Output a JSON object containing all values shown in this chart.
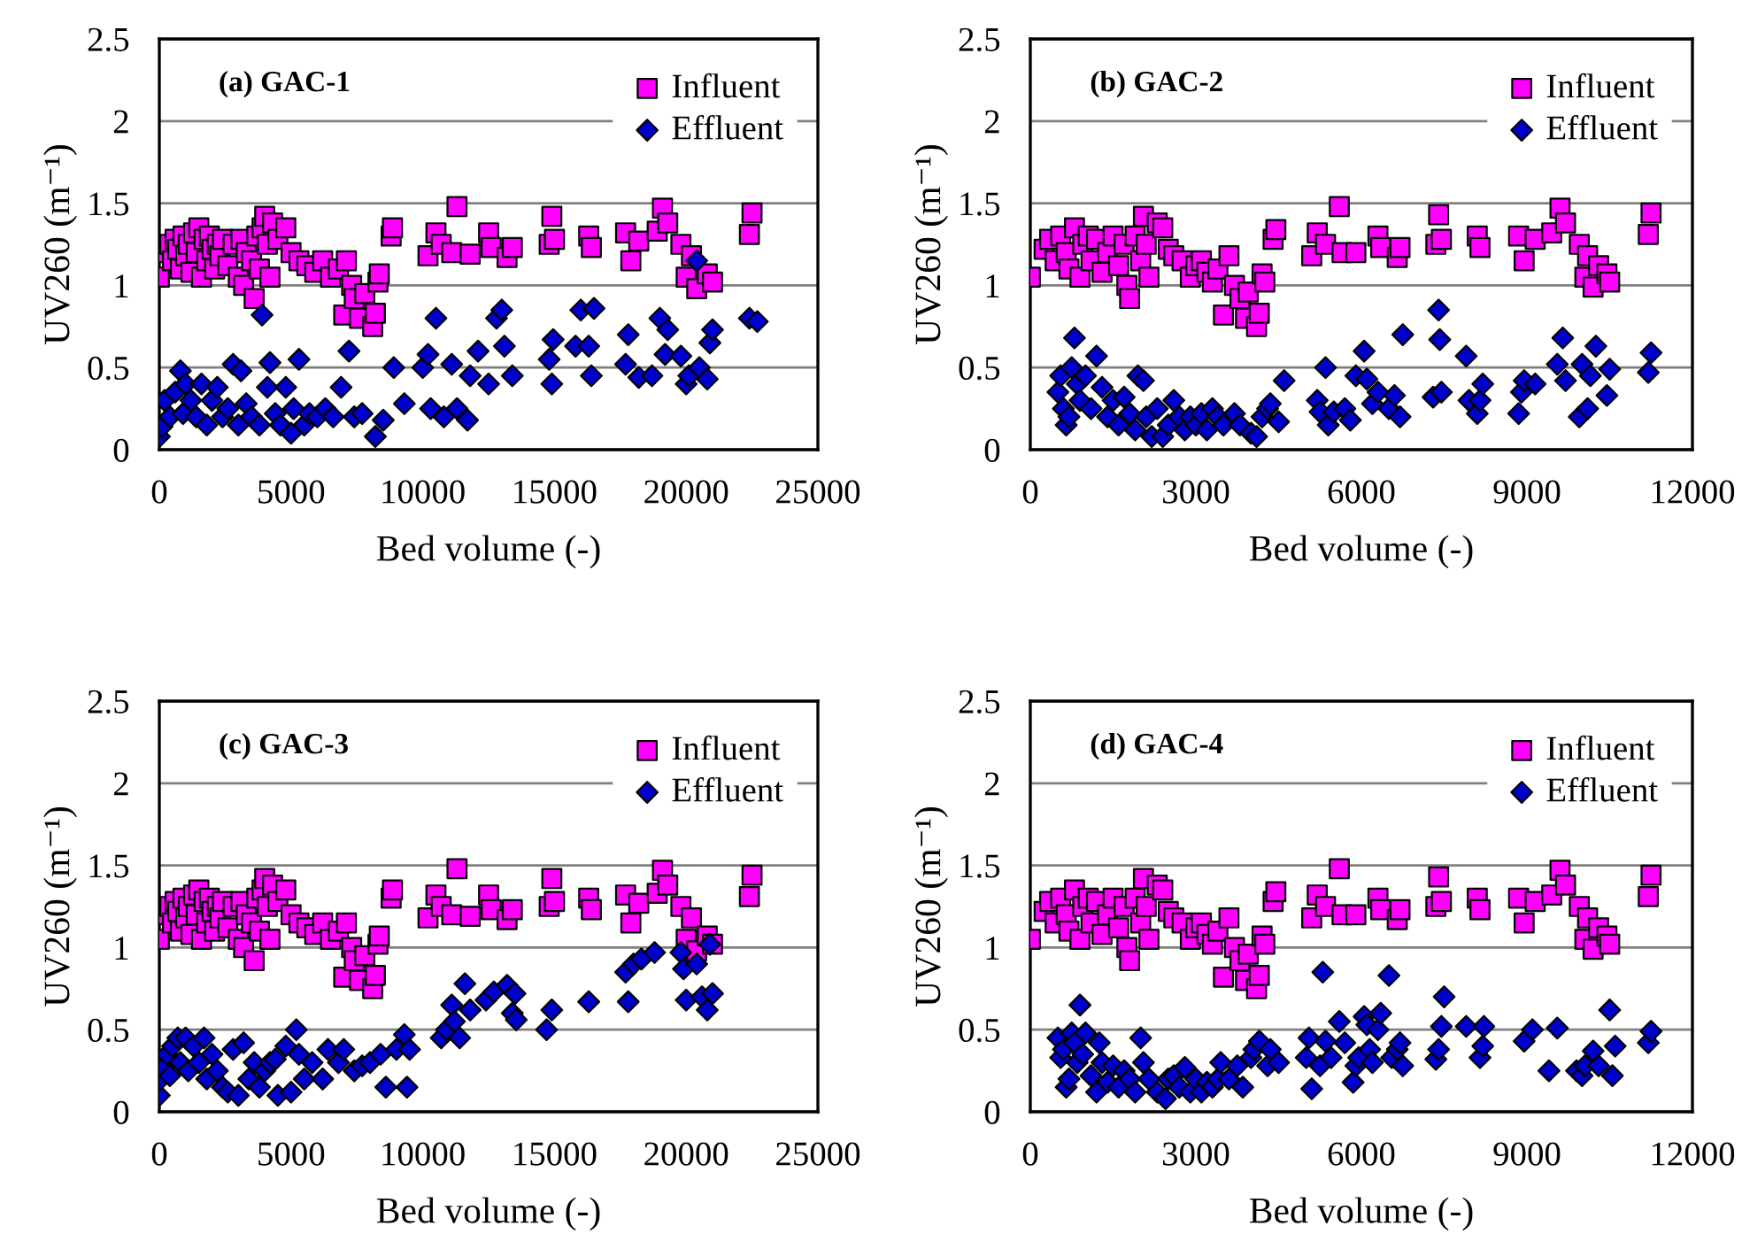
{
  "chart_data": [
    {
      "type": "scatter",
      "title": "(a) GAC-1",
      "xlabel": "Bed volume (-)",
      "ylabel": "UV260 (m⁻¹)",
      "xlim": [
        0,
        25000
      ],
      "xticks": [
        0,
        5000,
        10000,
        15000,
        20000,
        25000
      ],
      "ylim": [
        0,
        2.5
      ],
      "yticks": [
        0,
        0.5,
        1,
        1.5,
        2,
        2.5
      ],
      "grid": "y",
      "legend": "top right",
      "series": [
        {
          "name": "Influent",
          "color": "#ff00ff",
          "marker": "square",
          "x": [
            0,
            300,
            400,
            500,
            600,
            700,
            800,
            900,
            1000,
            1100,
            1200,
            1300,
            1400,
            1500,
            1600,
            1700,
            1800,
            1900,
            2000,
            2100,
            2200,
            2300,
            2400,
            2600,
            2800,
            3000,
            3100,
            3200,
            3300,
            3500,
            3600,
            3700,
            3800,
            3900,
            4000,
            4100,
            4200,
            4300,
            4500,
            4800,
            5000,
            5300,
            5600,
            5900,
            6200,
            6500,
            6800,
            7000,
            7100,
            7300,
            7400,
            7600,
            7800,
            8100,
            8200,
            8300,
            8350,
            8800,
            8850,
            10200,
            10500,
            10700,
            11100,
            11300,
            11800,
            12500,
            12600,
            13200,
            13400,
            14800,
            14900,
            15000,
            16300,
            16400,
            17700,
            17900,
            18200,
            18900,
            19100,
            19300,
            19800,
            20000,
            20200,
            20400,
            20800,
            21000,
            22400,
            22500
          ],
          "values": [
            1.05,
            1.2,
            1.25,
            1.15,
            1.28,
            1.22,
            1.1,
            1.3,
            1.18,
            1.25,
            1.08,
            1.32,
            1.2,
            1.35,
            1.05,
            1.28,
            1.15,
            1.3,
            1.22,
            1.1,
            1.25,
            1.18,
            1.28,
            1.12,
            1.25,
            1.05,
            1.28,
            1.0,
            1.2,
            1.15,
            0.92,
            1.3,
            1.1,
            1.35,
            1.42,
            1.25,
            1.05,
            1.38,
            1.28,
            1.35,
            1.2,
            1.15,
            1.12,
            1.08,
            1.15,
            1.05,
            1.1,
            0.82,
            1.15,
            1.0,
            0.92,
            0.8,
            0.95,
            0.75,
            0.83,
            1.02,
            1.07,
            1.3,
            1.35,
            1.18,
            1.32,
            1.25,
            1.2,
            1.48,
            1.19,
            1.32,
            1.23,
            1.17,
            1.23,
            1.25,
            1.42,
            1.28,
            1.3,
            1.23,
            1.32,
            1.15,
            1.27,
            1.33,
            1.47,
            1.38,
            1.25,
            1.05,
            1.18,
            0.98,
            1.07,
            1.02,
            1.31,
            1.44
          ]
        },
        {
          "name": "Effluent",
          "color": "#0000cc",
          "marker": "diamond",
          "x": [
            0,
            100,
            200,
            400,
            600,
            800,
            900,
            1000,
            1200,
            1400,
            1600,
            1800,
            2000,
            2200,
            2400,
            2600,
            2800,
            3000,
            3100,
            3300,
            3500,
            3800,
            3900,
            4100,
            4200,
            4400,
            4600,
            4800,
            5000,
            5100,
            5300,
            5500,
            5700,
            6000,
            6300,
            6600,
            6900,
            7200,
            7400,
            7700,
            8200,
            8500,
            8900,
            9300,
            10000,
            10200,
            10300,
            10500,
            10800,
            11100,
            11300,
            11700,
            11800,
            12100,
            12500,
            12800,
            13000,
            13100,
            13400,
            14800,
            14900,
            14950,
            15800,
            16000,
            16300,
            16400,
            16500,
            17700,
            17800,
            18200,
            18700,
            19000,
            19200,
            19300,
            19800,
            20000,
            20100,
            20400,
            20500,
            20800,
            20900,
            21000,
            22400,
            22700
          ],
          "values": [
            0.08,
            0.14,
            0.3,
            0.2,
            0.35,
            0.48,
            0.22,
            0.4,
            0.3,
            0.2,
            0.4,
            0.15,
            0.3,
            0.38,
            0.2,
            0.25,
            0.52,
            0.15,
            0.48,
            0.28,
            0.2,
            0.15,
            0.82,
            0.38,
            0.53,
            0.22,
            0.15,
            0.38,
            0.1,
            0.25,
            0.55,
            0.15,
            0.22,
            0.2,
            0.25,
            0.2,
            0.38,
            0.6,
            0.2,
            0.22,
            0.08,
            0.18,
            0.5,
            0.28,
            0.5,
            0.58,
            0.25,
            0.8,
            0.2,
            0.52,
            0.25,
            0.18,
            0.45,
            0.6,
            0.4,
            0.8,
            0.85,
            0.63,
            0.45,
            0.55,
            0.4,
            0.67,
            0.63,
            0.85,
            0.63,
            0.45,
            0.86,
            0.52,
            0.7,
            0.44,
            0.45,
            0.8,
            0.58,
            0.73,
            0.57,
            0.4,
            0.45,
            1.15,
            0.5,
            0.43,
            0.65,
            0.73,
            0.8,
            0.78
          ]
        }
      ]
    },
    {
      "type": "scatter",
      "title": "(b) GAC-2",
      "xlabel": "Bed volume (-)",
      "ylabel": "UV260 (m⁻¹)",
      "xlim": [
        0,
        12000
      ],
      "xticks": [
        0,
        3000,
        6000,
        9000,
        12000
      ],
      "ylim": [
        0,
        2.5
      ],
      "yticks": [
        0,
        0.5,
        1,
        1.5,
        2,
        2.5
      ],
      "grid": "y",
      "legend": "top right",
      "series": [
        {
          "name": "Influent",
          "color": "#ff00ff",
          "marker": "square",
          "x": [
            0,
            250,
            350,
            450,
            550,
            650,
            700,
            800,
            900,
            950,
            1050,
            1100,
            1200,
            1300,
            1400,
            1500,
            1600,
            1700,
            1750,
            1800,
            1900,
            2000,
            2050,
            2100,
            2150,
            2300,
            2400,
            2500,
            2600,
            2750,
            2900,
            3000,
            3100,
            3200,
            3300,
            3400,
            3500,
            3600,
            3700,
            3800,
            3900,
            3950,
            4100,
            4150,
            4200,
            4250,
            4400,
            4450,
            5100,
            5200,
            5350,
            5600,
            5650,
            5900,
            6300,
            6350,
            6650,
            6700,
            7350,
            7400,
            7450,
            8100,
            8150,
            8850,
            8950,
            9150,
            9450,
            9600,
            9700,
            9950,
            10050,
            10100,
            10200,
            10300,
            10450,
            10500,
            11200,
            11250
          ],
          "values": [
            1.05,
            1.22,
            1.28,
            1.15,
            1.3,
            1.2,
            1.1,
            1.35,
            1.05,
            1.25,
            1.3,
            1.15,
            1.28,
            1.08,
            1.2,
            1.3,
            1.12,
            1.25,
            1.0,
            0.92,
            1.3,
            1.15,
            1.42,
            1.25,
            1.05,
            1.38,
            1.35,
            1.22,
            1.18,
            1.15,
            1.05,
            1.12,
            1.15,
            1.08,
            1.02,
            1.1,
            0.82,
            1.18,
            1.0,
            0.92,
            0.8,
            0.96,
            0.75,
            0.83,
            1.07,
            1.02,
            1.28,
            1.34,
            1.18,
            1.32,
            1.25,
            1.48,
            1.2,
            1.2,
            1.3,
            1.23,
            1.17,
            1.23,
            1.25,
            1.43,
            1.28,
            1.3,
            1.23,
            1.3,
            1.15,
            1.28,
            1.32,
            1.47,
            1.38,
            1.25,
            1.05,
            1.18,
            0.99,
            1.12,
            1.07,
            1.02,
            1.31,
            1.44
          ]
        },
        {
          "name": "Effluent",
          "color": "#0000cc",
          "marker": "diamond",
          "x": [
            500,
            550,
            600,
            650,
            700,
            750,
            800,
            850,
            900,
            1000,
            1100,
            1200,
            1300,
            1400,
            1500,
            1600,
            1700,
            1800,
            1900,
            1950,
            2050,
            2100,
            2200,
            2300,
            2400,
            2500,
            2600,
            2700,
            2800,
            2900,
            3000,
            3100,
            3200,
            3300,
            3400,
            3500,
            3700,
            3800,
            4000,
            4100,
            4200,
            4300,
            4350,
            4500,
            4600,
            5200,
            5250,
            5350,
            5400,
            5500,
            5700,
            5800,
            5900,
            6050,
            6100,
            6200,
            6300,
            6500,
            6600,
            6700,
            6750,
            7300,
            7400,
            7420,
            7450,
            7900,
            7950,
            8100,
            8150,
            8200,
            8850,
            8900,
            8950,
            9150,
            9550,
            9650,
            9700,
            9950,
            10000,
            10100,
            10150,
            10250,
            10450,
            10500,
            11200,
            11250
          ],
          "values": [
            0.35,
            0.45,
            0.25,
            0.15,
            0.2,
            0.5,
            0.68,
            0.4,
            0.3,
            0.45,
            0.25,
            0.57,
            0.38,
            0.2,
            0.3,
            0.15,
            0.32,
            0.22,
            0.12,
            0.45,
            0.42,
            0.2,
            0.08,
            0.25,
            0.08,
            0.15,
            0.3,
            0.2,
            0.12,
            0.2,
            0.15,
            0.22,
            0.12,
            0.25,
            0.2,
            0.15,
            0.22,
            0.15,
            0.1,
            0.08,
            0.2,
            0.25,
            0.28,
            0.17,
            0.42,
            0.3,
            0.23,
            0.5,
            0.15,
            0.23,
            0.25,
            0.18,
            0.45,
            0.6,
            0.43,
            0.28,
            0.35,
            0.25,
            0.33,
            0.2,
            0.7,
            0.32,
            0.85,
            0.67,
            0.35,
            0.57,
            0.3,
            0.22,
            0.3,
            0.4,
            0.22,
            0.35,
            0.42,
            0.4,
            0.52,
            0.68,
            0.42,
            0.2,
            0.52,
            0.25,
            0.45,
            0.63,
            0.33,
            0.49,
            0.47,
            0.59
          ]
        }
      ]
    },
    {
      "type": "scatter",
      "title": "(c) GAC-3",
      "xlabel": "Bed volume (-)",
      "ylabel": "UV260 (m⁻¹)",
      "xlim": [
        0,
        25000
      ],
      "xticks": [
        0,
        5000,
        10000,
        15000,
        20000,
        25000
      ],
      "ylim": [
        0,
        2.5
      ],
      "yticks": [
        0,
        0.5,
        1,
        1.5,
        2,
        2.5
      ],
      "grid": "y",
      "legend": "top right",
      "series": [
        {
          "name": "Influent",
          "color": "#ff00ff",
          "marker": "square",
          "x": [
            0,
            300,
            400,
            500,
            600,
            700,
            800,
            900,
            1000,
            1100,
            1200,
            1300,
            1400,
            1500,
            1600,
            1700,
            1800,
            1900,
            2000,
            2100,
            2200,
            2300,
            2400,
            2600,
            2800,
            3000,
            3100,
            3200,
            3300,
            3500,
            3600,
            3700,
            3800,
            3900,
            4000,
            4100,
            4200,
            4300,
            4500,
            4800,
            5000,
            5300,
            5600,
            5900,
            6200,
            6500,
            6800,
            7000,
            7100,
            7300,
            7400,
            7600,
            7800,
            8100,
            8200,
            8300,
            8350,
            8800,
            8850,
            10200,
            10500,
            10700,
            11100,
            11300,
            11800,
            12500,
            12600,
            13200,
            13400,
            14800,
            14900,
            15000,
            16300,
            16400,
            17700,
            17900,
            18200,
            18900,
            19100,
            19300,
            19800,
            20000,
            20200,
            20400,
            20800,
            21000,
            22400,
            22500
          ],
          "values": [
            1.05,
            1.2,
            1.25,
            1.15,
            1.28,
            1.22,
            1.1,
            1.3,
            1.18,
            1.25,
            1.08,
            1.32,
            1.2,
            1.35,
            1.05,
            1.28,
            1.15,
            1.3,
            1.22,
            1.1,
            1.25,
            1.18,
            1.28,
            1.12,
            1.25,
            1.05,
            1.28,
            1.0,
            1.2,
            1.15,
            0.92,
            1.3,
            1.1,
            1.35,
            1.42,
            1.25,
            1.05,
            1.38,
            1.28,
            1.35,
            1.2,
            1.15,
            1.12,
            1.08,
            1.15,
            1.05,
            1.1,
            0.82,
            1.15,
            1.0,
            0.92,
            0.8,
            0.95,
            0.75,
            0.83,
            1.02,
            1.07,
            1.3,
            1.35,
            1.18,
            1.32,
            1.25,
            1.2,
            1.48,
            1.19,
            1.32,
            1.23,
            1.17,
            1.23,
            1.25,
            1.42,
            1.28,
            1.3,
            1.23,
            1.32,
            1.15,
            1.27,
            1.33,
            1.47,
            1.38,
            1.25,
            1.05,
            1.18,
            0.98,
            1.07,
            1.02,
            1.31,
            1.44
          ]
        },
        {
          "name": "Effluent",
          "color": "#0000cc",
          "marker": "diamond",
          "x": [
            0,
            50,
            150,
            300,
            400,
            500,
            700,
            800,
            1000,
            1100,
            1300,
            1500,
            1700,
            1800,
            2000,
            2200,
            2400,
            2600,
            2800,
            3000,
            3200,
            3400,
            3600,
            3800,
            4000,
            4200,
            4400,
            4500,
            4800,
            5000,
            5200,
            5300,
            5500,
            5800,
            6200,
            6400,
            6800,
            7000,
            7400,
            7700,
            8000,
            8400,
            8600,
            9000,
            9300,
            9400,
            9500,
            10700,
            10900,
            11100,
            11200,
            11400,
            11600,
            11800,
            12400,
            12700,
            13200,
            13400,
            13500,
            13550,
            14700,
            14900,
            16300,
            17700,
            17800,
            18000,
            18300,
            18800,
            19800,
            19900,
            20000,
            20400,
            20600,
            20800,
            20900,
            21000
          ],
          "values": [
            0.1,
            0.2,
            0.27,
            0.35,
            0.22,
            0.4,
            0.45,
            0.3,
            0.45,
            0.25,
            0.4,
            0.3,
            0.45,
            0.2,
            0.35,
            0.25,
            0.15,
            0.12,
            0.38,
            0.1,
            0.42,
            0.2,
            0.3,
            0.15,
            0.25,
            0.3,
            0.32,
            0.1,
            0.4,
            0.12,
            0.5,
            0.35,
            0.2,
            0.3,
            0.2,
            0.38,
            0.3,
            0.38,
            0.25,
            0.28,
            0.3,
            0.35,
            0.15,
            0.38,
            0.47,
            0.15,
            0.38,
            0.45,
            0.5,
            0.65,
            0.55,
            0.45,
            0.78,
            0.62,
            0.68,
            0.73,
            0.77,
            0.6,
            0.72,
            0.56,
            0.5,
            0.62,
            0.67,
            0.85,
            0.67,
            0.9,
            0.93,
            0.97,
            0.97,
            0.87,
            0.68,
            0.9,
            0.7,
            0.62,
            1.02,
            0.72
          ]
        }
      ]
    },
    {
      "type": "scatter",
      "title": "(d) GAC-4",
      "xlabel": "Bed volume (-)",
      "ylabel": "UV260 (m⁻¹)",
      "xlim": [
        0,
        12000
      ],
      "xticks": [
        0,
        3000,
        6000,
        9000,
        12000
      ],
      "ylim": [
        0,
        2.5
      ],
      "yticks": [
        0,
        0.5,
        1,
        1.5,
        2,
        2.5
      ],
      "grid": "y",
      "legend": "top right",
      "series": [
        {
          "name": "Influent",
          "color": "#ff00ff",
          "marker": "square",
          "x": [
            0,
            250,
            350,
            450,
            550,
            650,
            700,
            800,
            900,
            950,
            1050,
            1100,
            1200,
            1300,
            1400,
            1500,
            1600,
            1700,
            1750,
            1800,
            1900,
            2000,
            2050,
            2100,
            2150,
            2300,
            2400,
            2500,
            2600,
            2750,
            2900,
            3000,
            3100,
            3200,
            3300,
            3400,
            3500,
            3600,
            3700,
            3800,
            3900,
            3950,
            4100,
            4150,
            4200,
            4250,
            4400,
            4450,
            5100,
            5200,
            5350,
            5600,
            5650,
            5900,
            6300,
            6350,
            6650,
            6700,
            7350,
            7400,
            7450,
            8100,
            8150,
            8850,
            8950,
            9150,
            9450,
            9600,
            9700,
            9950,
            10050,
            10100,
            10200,
            10300,
            10450,
            10500,
            11200,
            11250
          ],
          "values": [
            1.05,
            1.22,
            1.28,
            1.15,
            1.3,
            1.2,
            1.1,
            1.35,
            1.05,
            1.25,
            1.3,
            1.15,
            1.28,
            1.08,
            1.2,
            1.3,
            1.12,
            1.25,
            1.0,
            0.92,
            1.3,
            1.15,
            1.42,
            1.25,
            1.05,
            1.38,
            1.35,
            1.22,
            1.18,
            1.15,
            1.05,
            1.12,
            1.15,
            1.08,
            1.02,
            1.1,
            0.82,
            1.18,
            1.0,
            0.92,
            0.8,
            0.96,
            0.75,
            0.83,
            1.07,
            1.02,
            1.28,
            1.34,
            1.18,
            1.32,
            1.25,
            1.48,
            1.2,
            1.2,
            1.3,
            1.23,
            1.17,
            1.23,
            1.25,
            1.43,
            1.28,
            1.3,
            1.23,
            1.3,
            1.15,
            1.28,
            1.32,
            1.47,
            1.38,
            1.25,
            1.05,
            1.18,
            0.99,
            1.12,
            1.07,
            1.02,
            1.31,
            1.44
          ]
        },
        {
          "name": "Effluent",
          "color": "#0000cc",
          "marker": "diamond",
          "x": [
            500,
            550,
            600,
            650,
            700,
            750,
            800,
            850,
            900,
            950,
            1000,
            1100,
            1200,
            1250,
            1300,
            1400,
            1500,
            1600,
            1700,
            1800,
            1900,
            2000,
            2050,
            2150,
            2300,
            2450,
            2500,
            2600,
            2700,
            2800,
            2900,
            3000,
            3100,
            3200,
            3300,
            3400,
            3450,
            3600,
            3750,
            3850,
            4000,
            4050,
            4150,
            4300,
            4350,
            4500,
            5000,
            5050,
            5100,
            5250,
            5300,
            5350,
            5450,
            5600,
            5700,
            5850,
            5900,
            5950,
            6050,
            6100,
            6150,
            6200,
            6300,
            6350,
            6500,
            6550,
            6650,
            6700,
            6750,
            7350,
            7400,
            7450,
            7500,
            7900,
            8150,
            8200,
            8220,
            8950,
            9100,
            9400,
            9550,
            9900,
            10000,
            10050,
            10200,
            10300,
            10500,
            10550,
            10600,
            11200,
            11250
          ],
          "values": [
            0.45,
            0.33,
            0.38,
            0.15,
            0.2,
            0.48,
            0.42,
            0.3,
            0.65,
            0.35,
            0.48,
            0.22,
            0.12,
            0.42,
            0.3,
            0.18,
            0.28,
            0.15,
            0.25,
            0.2,
            0.12,
            0.45,
            0.3,
            0.2,
            0.12,
            0.08,
            0.2,
            0.22,
            0.15,
            0.27,
            0.12,
            0.2,
            0.12,
            0.18,
            0.15,
            0.2,
            0.3,
            0.2,
            0.28,
            0.15,
            0.33,
            0.38,
            0.43,
            0.28,
            0.38,
            0.3,
            0.33,
            0.45,
            0.14,
            0.28,
            0.85,
            0.43,
            0.33,
            0.55,
            0.42,
            0.18,
            0.28,
            0.33,
            0.58,
            0.53,
            0.38,
            0.3,
            0.5,
            0.6,
            0.83,
            0.33,
            0.38,
            0.42,
            0.28,
            0.32,
            0.38,
            0.52,
            0.7,
            0.52,
            0.33,
            0.4,
            0.52,
            0.43,
            0.5,
            0.25,
            0.51,
            0.25,
            0.22,
            0.28,
            0.37,
            0.28,
            0.62,
            0.22,
            0.4,
            0.42,
            0.49
          ]
        }
      ]
    }
  ]
}
